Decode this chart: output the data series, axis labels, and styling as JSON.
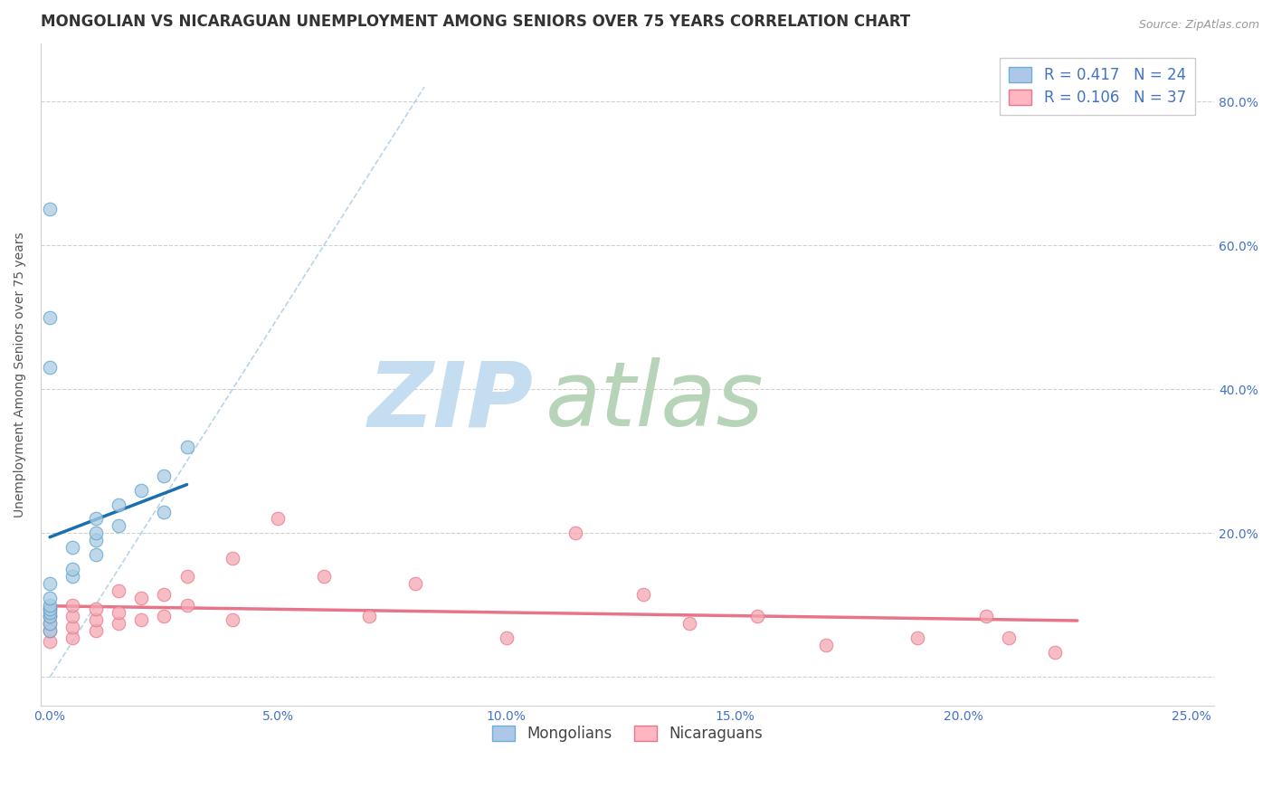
{
  "title": "MONGOLIAN VS NICARAGUAN UNEMPLOYMENT AMONG SENIORS OVER 75 YEARS CORRELATION CHART",
  "source_text": "Source: ZipAtlas.com",
  "ylabel": "Unemployment Among Seniors over 75 years",
  "xlim": [
    -0.002,
    0.255
  ],
  "ylim": [
    -0.04,
    0.88
  ],
  "xtick_vals": [
    0.0,
    0.05,
    0.1,
    0.15,
    0.2,
    0.25
  ],
  "xtick_labels": [
    "0.0%",
    "5.0%",
    "10.0%",
    "15.0%",
    "20.0%",
    "25.0%"
  ],
  "ytick_vals": [
    0.0,
    0.2,
    0.4,
    0.6,
    0.8
  ],
  "ytick_labels_right": [
    "",
    "20.0%",
    "40.0%",
    "60.0%",
    "80.0%"
  ],
  "mongolian_x": [
    0.0,
    0.0,
    0.0,
    0.0,
    0.0,
    0.0,
    0.0,
    0.0,
    0.005,
    0.005,
    0.005,
    0.01,
    0.01,
    0.01,
    0.01,
    0.015,
    0.015,
    0.02,
    0.025,
    0.025,
    0.03,
    0.0,
    0.0,
    0.0
  ],
  "mongolian_y": [
    0.065,
    0.075,
    0.085,
    0.09,
    0.095,
    0.1,
    0.11,
    0.13,
    0.14,
    0.15,
    0.18,
    0.17,
    0.19,
    0.2,
    0.22,
    0.21,
    0.24,
    0.26,
    0.23,
    0.28,
    0.32,
    0.43,
    0.5,
    0.65
  ],
  "nicaraguan_x": [
    0.0,
    0.0,
    0.0,
    0.0,
    0.0,
    0.005,
    0.005,
    0.005,
    0.005,
    0.01,
    0.01,
    0.01,
    0.015,
    0.015,
    0.015,
    0.02,
    0.02,
    0.025,
    0.025,
    0.03,
    0.03,
    0.04,
    0.04,
    0.05,
    0.06,
    0.07,
    0.08,
    0.1,
    0.115,
    0.13,
    0.14,
    0.155,
    0.17,
    0.19,
    0.205,
    0.21,
    0.22
  ],
  "nicaraguan_y": [
    0.05,
    0.065,
    0.075,
    0.085,
    0.095,
    0.055,
    0.07,
    0.085,
    0.1,
    0.065,
    0.08,
    0.095,
    0.075,
    0.09,
    0.12,
    0.08,
    0.11,
    0.085,
    0.115,
    0.1,
    0.14,
    0.08,
    0.165,
    0.22,
    0.14,
    0.085,
    0.13,
    0.055,
    0.2,
    0.115,
    0.075,
    0.085,
    0.045,
    0.055,
    0.085,
    0.055,
    0.035
  ],
  "mongolian_color": "#a8cce4",
  "nicaraguan_color": "#f4a7b2",
  "mongolian_edge_color": "#5b9ec9",
  "nicaraguan_edge_color": "#e8748a",
  "mongolian_line_color": "#1a6faf",
  "nicaraguan_line_color": "#e8748a",
  "dashed_line_color": "#aecde0",
  "R_mongolian": 0.417,
  "N_mongolian": 24,
  "R_nicaraguan": 0.106,
  "N_nicaraguan": 37,
  "title_fontsize": 12,
  "axis_label_fontsize": 10,
  "tick_fontsize": 10,
  "legend_fontsize": 12,
  "marker_size": 110,
  "background_color": "#ffffff",
  "grid_color": "#d0d0d0",
  "tick_label_color": "#4472c4",
  "watermark_zip_color": "#c5ddf0",
  "watermark_atlas_color": "#b8d4b8"
}
